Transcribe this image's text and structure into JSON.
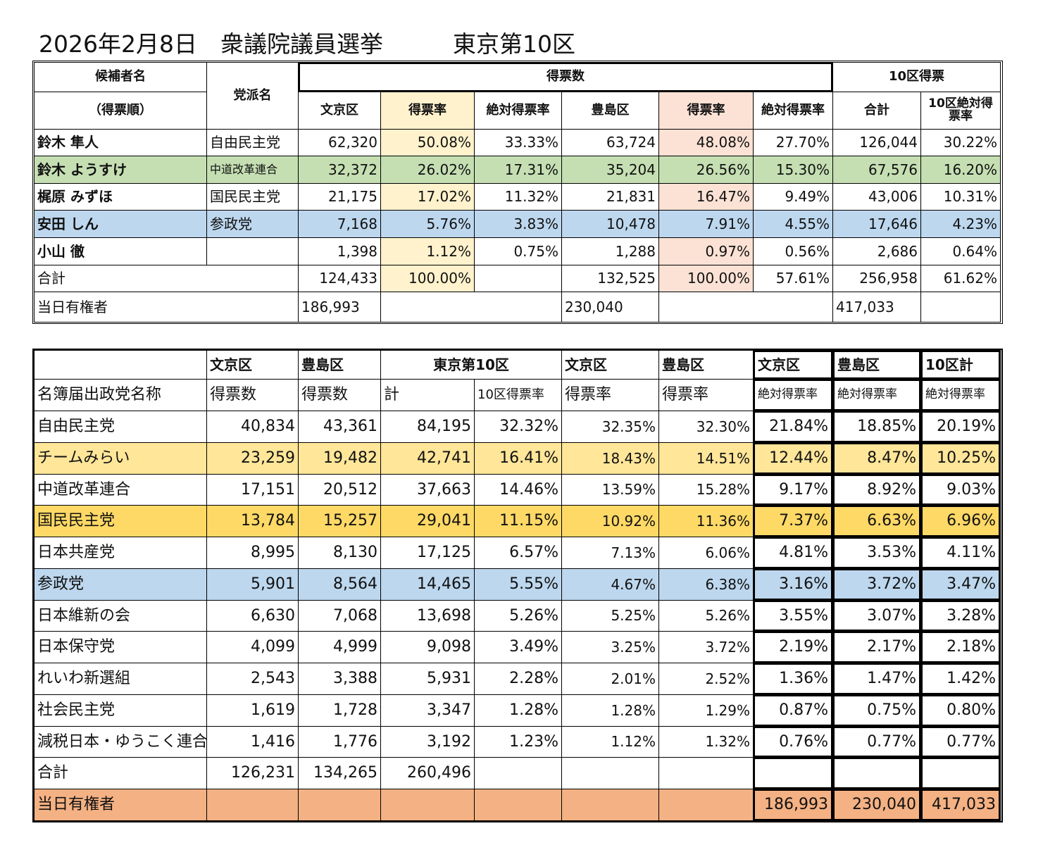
{
  "title": "2026年2月8日　衆議院議員選挙　　　東京第10区",
  "table1": {
    "header": {
      "candidate": "候補者名",
      "order": "（得票順）",
      "party": "党派名",
      "votes": "得票数",
      "district_votes": "10区得票",
      "columns": [
        "文京区",
        "得票率",
        "絶対得票率",
        "豊島区",
        "得票率",
        "絶対得票率",
        "合計",
        "10区絶対得票率"
      ]
    },
    "rows": [
      [
        "鈴木 隼人",
        "自由民主党",
        "62,320",
        "50.08%",
        "33.33%",
        "63,724",
        "48.08%",
        "27.70%",
        "126,044",
        "30.22%"
      ],
      [
        "鈴木 ようすけ",
        "中道改革連合",
        "32,372",
        "26.02%",
        "17.31%",
        "35,204",
        "26.56%",
        "15.30%",
        "67,576",
        "16.20%"
      ],
      [
        "梶原 みずほ",
        "国民民主党",
        "21,175",
        "17.02%",
        "11.32%",
        "21,831",
        "16.47%",
        "9.49%",
        "43,006",
        "10.31%"
      ],
      [
        "安田 しん",
        "参政党",
        "7,168",
        "5.76%",
        "3.83%",
        "10,478",
        "7.91%",
        "4.55%",
        "17,646",
        "4.23%"
      ],
      [
        "小山 徹",
        null,
        "1,398",
        "1.12%",
        "0.75%",
        "1,288",
        "0.97%",
        "0.56%",
        "2,686",
        "0.64%"
      ]
    ],
    "total": {
      "label": "合計",
      "values": [
        "124,433",
        "100.00%",
        null,
        "132,525",
        "100.00%",
        "57.61%",
        "256,958",
        "61.62%"
      ]
    },
    "electorate": {
      "label": "当日有権者",
      "values": [
        "186,993",
        null,
        "230,040",
        null,
        "417,033",
        null
      ]
    }
  },
  "table2": {
    "header1": [
      null,
      "文京区",
      "豊島区",
      "東京第10区",
      "文京区",
      "豊島区",
      "文京区",
      "豊島区",
      "10区計"
    ],
    "header2": [
      "名簿届出政党名称",
      "得票数",
      "得票数",
      "計",
      "10区得票率",
      "得票率",
      "得票率",
      "絶対得票率",
      "絶対得票率",
      "絶対得票率"
    ],
    "rows": [
      [
        "自由民主党",
        "40,834",
        "43,361",
        "84,195",
        "32.32%",
        "32.35%",
        "32.30%",
        "21.84%",
        "18.85%",
        "20.19%"
      ],
      [
        "チームみらい",
        "23,259",
        "19,482",
        "42,741",
        "16.41%",
        "18.43%",
        "14.51%",
        "12.44%",
        "8.47%",
        "10.25%"
      ],
      [
        "中道改革連合",
        "17,151",
        "20,512",
        "37,663",
        "14.46%",
        "13.59%",
        "15.28%",
        "9.17%",
        "8.92%",
        "9.03%"
      ],
      [
        "国民民主党",
        "13,784",
        "15,257",
        "29,041",
        "11.15%",
        "10.92%",
        "11.36%",
        "7.37%",
        "6.63%",
        "6.96%"
      ],
      [
        "日本共産党",
        "8,995",
        "8,130",
        "17,125",
        "6.57%",
        "7.13%",
        "6.06%",
        "4.81%",
        "3.53%",
        "4.11%"
      ],
      [
        "参政党",
        "5,901",
        "8,564",
        "14,465",
        "5.55%",
        "4.67%",
        "6.38%",
        "3.16%",
        "3.72%",
        "3.47%"
      ],
      [
        "日本維新の会",
        "6,630",
        "7,068",
        "13,698",
        "5.26%",
        "5.25%",
        "5.26%",
        "3.55%",
        "3.07%",
        "3.28%"
      ],
      [
        "日本保守党",
        "4,099",
        "4,999",
        "9,098",
        "3.49%",
        "3.25%",
        "3.72%",
        "2.19%",
        "2.17%",
        "2.18%"
      ],
      [
        "れいわ新選組",
        "2,543",
        "3,388",
        "5,931",
        "2.28%",
        "2.01%",
        "2.52%",
        "1.36%",
        "1.47%",
        "1.42%"
      ],
      [
        "社会民主党",
        "1,619",
        "1,728",
        "3,347",
        "1.28%",
        "1.28%",
        "1.29%",
        "0.87%",
        "0.75%",
        "0.80%"
      ],
      [
        "減税日本・ゆうこく連合",
        "1,416",
        "1,776",
        "3,192",
        "1.23%",
        "1.12%",
        "1.32%",
        "0.76%",
        "0.77%",
        "0.77%"
      ]
    ],
    "total": [
      "合計",
      "126,231",
      "134,265",
      "260,496",
      null,
      null,
      null,
      null,
      null,
      null
    ],
    "electorate": {
      "label": "当日有権者",
      "values": [
        "186,993",
        "230,040",
        "417,033"
      ]
    }
  }
}
